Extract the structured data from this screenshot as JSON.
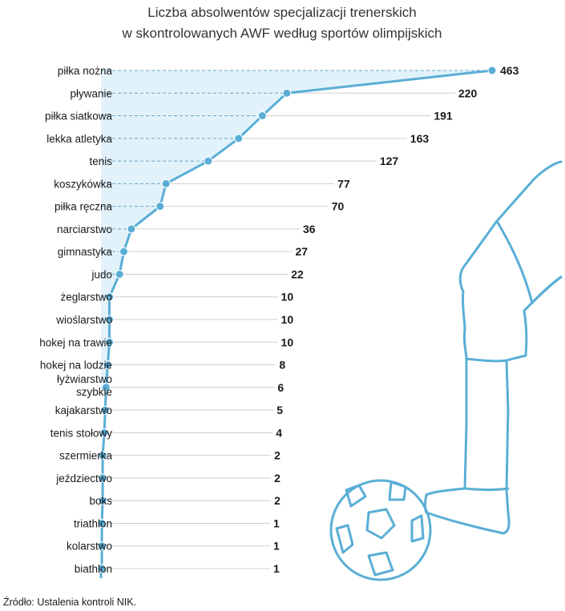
{
  "chart_data": {
    "type": "line",
    "title_lines": [
      "Liczba absolwentów specjalizacji trenerskich",
      "w skontrolowanych AWF według sportów olimpijskich"
    ],
    "categories": [
      [
        "piłka nożna"
      ],
      [
        "pływanie"
      ],
      [
        "piłka siatkowa"
      ],
      [
        "lekka atletyka"
      ],
      [
        "tenis"
      ],
      [
        "koszykówka"
      ],
      [
        "piłka ręczna"
      ],
      [
        "narciarstwo"
      ],
      [
        "gimnastyka"
      ],
      [
        "judo"
      ],
      [
        "żeglarstwo"
      ],
      [
        "wioślarstwo"
      ],
      [
        "hokej na trawie"
      ],
      [
        "hokej na lodzie"
      ],
      [
        "łyżwiarstwo",
        "szybkie"
      ],
      [
        "kajakarstwo"
      ],
      [
        "tenis stołowy"
      ],
      [
        "szermierka"
      ],
      [
        "jeździectwo"
      ],
      [
        "boks"
      ],
      [
        "triathlon"
      ],
      [
        "kolarstwo"
      ],
      [
        "biathlon"
      ]
    ],
    "values": [
      463,
      220,
      191,
      163,
      127,
      77,
      70,
      36,
      27,
      22,
      10,
      10,
      10,
      8,
      6,
      5,
      4,
      2,
      2,
      2,
      1,
      1,
      1
    ],
    "xlim": [
      0,
      463
    ],
    "grid": true,
    "colors": {
      "line": "#5aaed6",
      "area": "#e2f2fa",
      "gridline": "#cfcfcf",
      "illustration": "#5aaed6"
    }
  },
  "source": "Źródło: Ustalenia kontroli NIK.",
  "illustration": "football-player-icon"
}
